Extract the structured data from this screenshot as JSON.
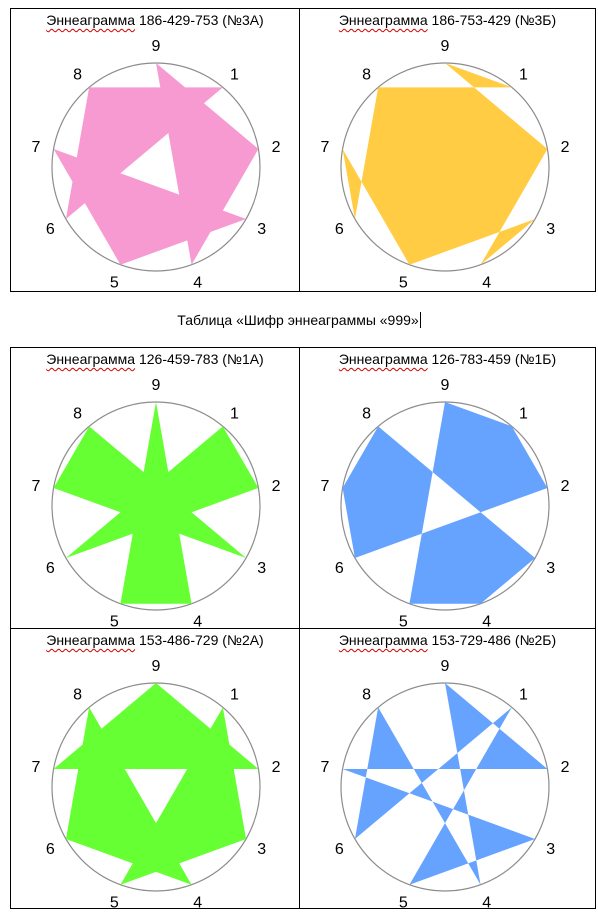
{
  "caption": "Таблица «Шифр эннеаграммы «999»",
  "diagrams": [
    {
      "title_word": "Эннеаграмма",
      "title_rest": " 186-429-753 (№3А)",
      "fill": "#f79ad2",
      "type": "star",
      "triangles": [
        [
          1,
          8,
          6
        ],
        [
          4,
          2,
          9
        ],
        [
          7,
          5,
          3
        ]
      ]
    },
    {
      "title_word": "Эннеаграмма",
      "title_rest": " 186-753-429 (№3Б)",
      "fill": "#ffcc44",
      "type": "polyline",
      "path": [
        1,
        8,
        6,
        7,
        5,
        3,
        4,
        2,
        9
      ]
    },
    {
      "title_word": "Эннеаграмма",
      "title_rest": " 126-459-783 (№1А)",
      "fill": "#66ff33",
      "type": "star",
      "triangles": [
        [
          1,
          2,
          6
        ],
        [
          4,
          5,
          9
        ],
        [
          7,
          8,
          3
        ]
      ]
    },
    {
      "title_word": "Эннеаграмма",
      "title_rest": " 126-783-459 (№1Б)",
      "fill": "#66a3ff",
      "type": "polyline",
      "path": [
        1,
        2,
        6,
        7,
        8,
        3,
        4,
        5,
        9
      ]
    },
    {
      "title_word": "Эннеаграмма",
      "title_rest": " 153-486-729 (№2А)",
      "fill": "#66ff33",
      "type": "star",
      "triangles": [
        [
          1,
          5,
          3
        ],
        [
          4,
          8,
          6
        ],
        [
          7,
          2,
          9
        ]
      ]
    },
    {
      "title_word": "Эннеаграмма",
      "title_rest": " 153-729-486 (№2Б)",
      "fill": "#66a3ff",
      "type": "polyline",
      "path": [
        1,
        5,
        3,
        7,
        2,
        9,
        4,
        8,
        6
      ]
    }
  ],
  "numbers": [
    "1",
    "2",
    "3",
    "4",
    "5",
    "6",
    "7",
    "8",
    "9"
  ]
}
